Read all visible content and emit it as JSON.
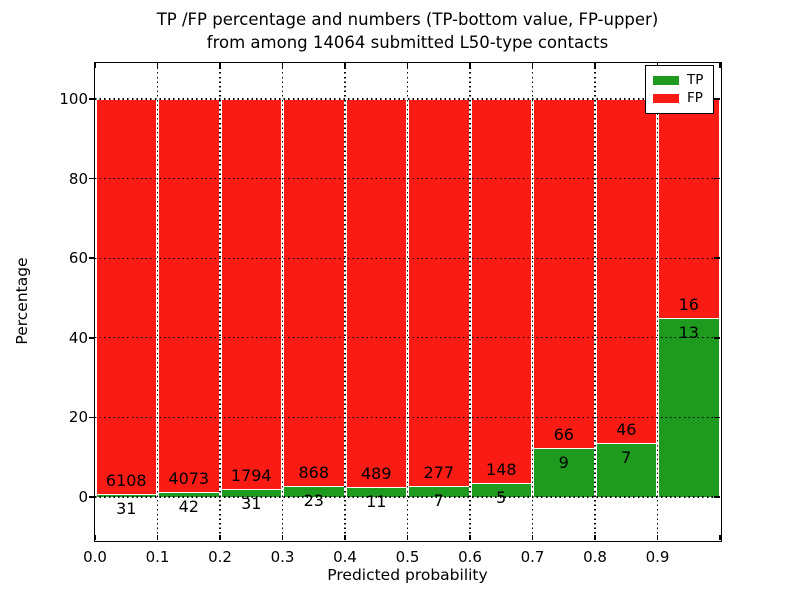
{
  "figure": {
    "title_line1": "TP /FP percentage and numbers (TP-bottom value, FP-upper)",
    "title_line2": "from among 14064 submitted L50-type contacts"
  },
  "chart_data": {
    "type": "bar",
    "stacked": true,
    "normalized": "each bin stacked to 100%",
    "title": "TP /FP percentage and numbers (TP-bottom value, FP-upper) from among 14064 submitted L50-type contacts",
    "xlabel": "Predicted probability",
    "ylabel": "Percentage",
    "total_contacts": 14064,
    "bin_width": 0.1,
    "categories": [
      "0.0",
      "0.1",
      "0.2",
      "0.3",
      "0.4",
      "0.5",
      "0.6",
      "0.7",
      "0.8",
      "0.9"
    ],
    "xtick_labels": [
      "0.0",
      "0.1",
      "0.2",
      "0.3",
      "0.4",
      "0.5",
      "0.6",
      "0.7",
      "0.8",
      "0.9"
    ],
    "yticks": [
      0,
      20,
      40,
      60,
      80,
      100
    ],
    "ylim": [
      -10.8,
      109
    ],
    "grid": "dotted",
    "series": [
      {
        "name": "TP",
        "color": "#1e9b1e",
        "counts": [
          31,
          42,
          31,
          23,
          11,
          7,
          5,
          9,
          7,
          13
        ]
      },
      {
        "name": "FP",
        "color": "#fb1b15",
        "counts": [
          6108,
          4073,
          1794,
          868,
          489,
          277,
          148,
          66,
          46,
          16
        ]
      }
    ],
    "tp_percent_of_bin": [
      0.5,
      1.02,
      1.7,
      2.58,
      2.2,
      2.46,
      3.27,
      12.0,
      13.21,
      44.83
    ],
    "legend": {
      "position": "upper right",
      "entries": [
        "TP",
        "FP"
      ]
    }
  }
}
